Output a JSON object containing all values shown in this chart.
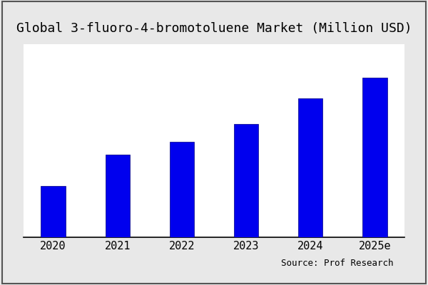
{
  "title": "Global 3-fluoro-4-bromotoluene Market (Million USD)",
  "categories": [
    "2020",
    "2021",
    "2022",
    "2023",
    "2024",
    "2025e"
  ],
  "values": [
    20,
    32,
    37,
    44,
    54,
    62
  ],
  "bar_color": "#0000EE",
  "figure_background_color": "#e8e8e8",
  "plot_background_color": "#ffffff",
  "source_text": "Source: Prof Research",
  "title_fontsize": 13,
  "tick_fontsize": 11,
  "source_fontsize": 9,
  "bar_width": 0.38,
  "ylim": [
    0,
    75
  ],
  "border_color": "#555555",
  "border_linewidth": 1.5
}
